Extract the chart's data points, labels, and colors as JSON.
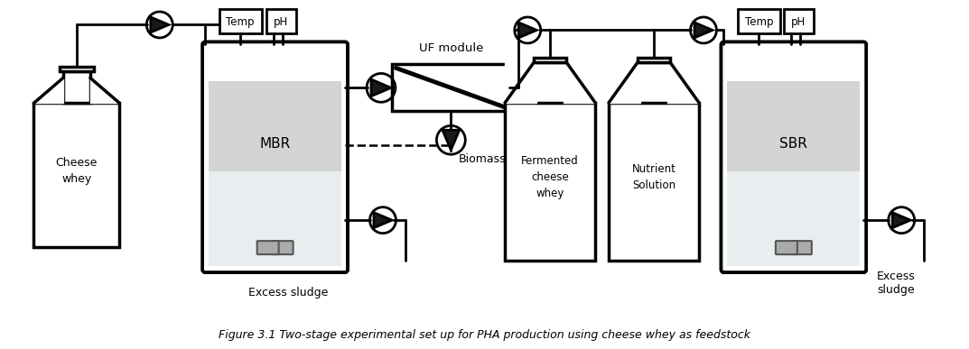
{
  "title": "Figure 3.1 Two-stage experimental set up for PHA production using cheese whey as feedstock",
  "bg_color": "#ffffff",
  "line_color": "#000000",
  "lw": 2.0,
  "tlw": 2.5,
  "labels": {
    "cheese_whey": "Cheese\nwhey",
    "mbr": "MBR",
    "sbr": "SBR",
    "biomass": "Biomass",
    "excess_sludge_1": "Excess sludge",
    "excess_sludge_2": "Excess\nsludge",
    "uf_module": "UF module",
    "temp1": "Temp",
    "ph1": "pH",
    "temp2": "Temp",
    "ph2": "pH",
    "fermented": "Fermented\ncheese\nwhey",
    "nutrient": "Nutrient\nSolution"
  },
  "fig_width": 10.55,
  "fig_height": 3.77
}
